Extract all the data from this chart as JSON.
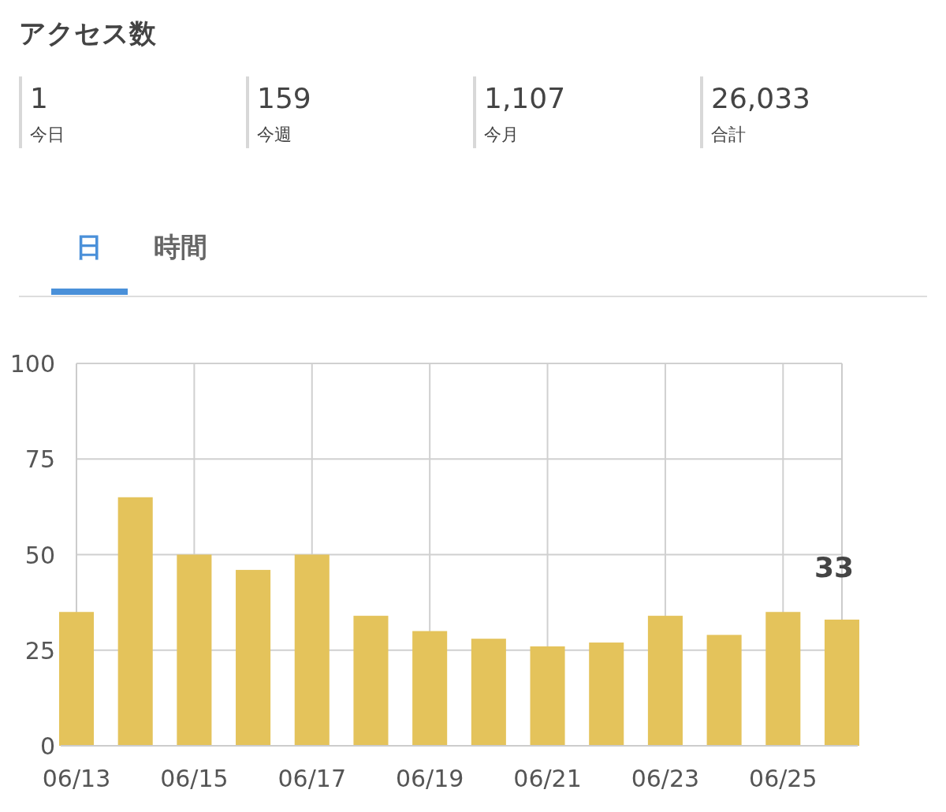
{
  "chart_data": [
    {
      "type": "other",
      "title": "アクセス数",
      "categories": [
        "今日",
        "今週",
        "今月",
        "合計"
      ],
      "values": [
        1,
        159,
        1107,
        26033
      ],
      "value_labels": [
        "1",
        "159",
        "1,107",
        "26,033"
      ],
      "annotations": [
        "日",
        "時間"
      ]
    },
    {
      "type": "bar",
      "categories": [
        "06/13",
        null,
        "06/15",
        null,
        "06/17",
        null,
        "06/19",
        null,
        "06/21",
        null,
        "06/23",
        null,
        "06/25",
        null
      ],
      "values": [
        35,
        65,
        50,
        46,
        50,
        34,
        30,
        28,
        26,
        27,
        34,
        29,
        35,
        33
      ],
      "color": "#e4c35b",
      "ylim": [
        0,
        100
      ],
      "yticks": [
        0,
        25,
        50,
        75,
        100
      ],
      "grid": true,
      "value_labels": [
        null,
        null,
        null,
        null,
        null,
        null,
        null,
        null,
        null,
        null,
        null,
        null,
        null,
        "33"
      ]
    }
  ]
}
